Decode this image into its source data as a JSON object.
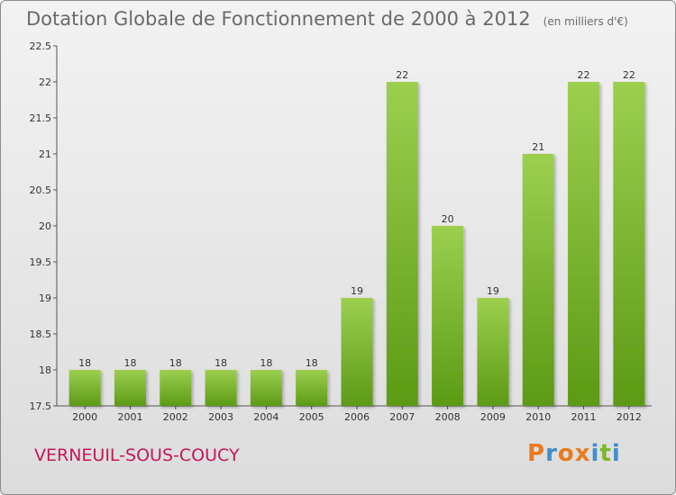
{
  "header": {
    "title": "Dotation Globale de Fonctionnement de 2000 à 2012",
    "unit_note": "(en milliers d'€)"
  },
  "footer": {
    "commune": "VERNEUIL-SOUS-COUCY",
    "logo_text": "Proxiti"
  },
  "colors": {
    "bar_light": "#9ccf4f",
    "bar_dark": "#5c9a15",
    "commune_text": "#c2185b",
    "logo_letters": [
      "#e87b1e",
      "#3f8fce",
      "#e87b1e",
      "#e87b1e",
      "#3f8fce",
      "#7ab829",
      "#3f8fce"
    ]
  },
  "chart_data": {
    "type": "bar",
    "title": "Dotation Globale de Fonctionnement de 2000 à 2012",
    "subtitle": "(en milliers d'€)",
    "categories": [
      "2000",
      "2001",
      "2002",
      "2003",
      "2004",
      "2005",
      "2006",
      "2007",
      "2008",
      "2009",
      "2010",
      "2011",
      "2012"
    ],
    "values": [
      18,
      18,
      18,
      18,
      18,
      18,
      19,
      22,
      20,
      19,
      21,
      22,
      22
    ],
    "data_labels": [
      "18",
      "18",
      "18",
      "18",
      "18",
      "18",
      "19",
      "22",
      "20",
      "19",
      "21",
      "22",
      "22"
    ],
    "ylim": [
      17.5,
      22.5
    ],
    "yticks": [
      17.5,
      18,
      18.5,
      19,
      19.5,
      20,
      20.5,
      21,
      21.5,
      22,
      22.5
    ],
    "ytick_labels": [
      "17.5",
      "18",
      "18.5",
      "19",
      "19.5",
      "20",
      "20.5",
      "21",
      "21.5",
      "22",
      "22.5"
    ],
    "xlabel": "",
    "ylabel": "",
    "grid": false,
    "legend": "none"
  }
}
